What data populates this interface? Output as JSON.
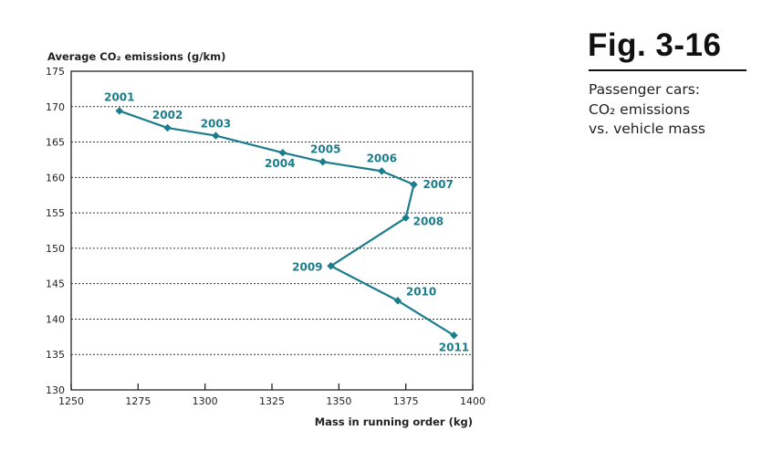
{
  "figure": {
    "number": "Fig. 3-16",
    "subtitle_lines": [
      "Passenger cars:",
      "CO₂ emissions",
      "vs. vehicle mass"
    ]
  },
  "colors": {
    "series": "#1b7c8c",
    "axis": "#222222",
    "grid": "#333333"
  },
  "chart_data": {
    "type": "line",
    "title": "Passenger cars: CO₂ emissions vs. vehicle mass",
    "xlabel": "Mass in running order (kg)",
    "ylabel": "Average CO₂ emissions (g/km)",
    "xlim": [
      1250,
      1400
    ],
    "ylim": [
      130,
      175
    ],
    "xticks": [
      1250,
      1275,
      1300,
      1325,
      1350,
      1375,
      1400
    ],
    "yticks": [
      130,
      135,
      140,
      145,
      150,
      155,
      160,
      165,
      170,
      175
    ],
    "grid": "horizontal dotted",
    "series": [
      {
        "name": "Passenger cars",
        "points": [
          {
            "label": "2001",
            "x": 1268,
            "y": 169.4
          },
          {
            "label": "2002",
            "x": 1286,
            "y": 167.0
          },
          {
            "label": "2003",
            "x": 1304,
            "y": 165.9
          },
          {
            "label": "2004",
            "x": 1329,
            "y": 163.5
          },
          {
            "label": "2005",
            "x": 1344,
            "y": 162.2
          },
          {
            "label": "2006",
            "x": 1366,
            "y": 160.9
          },
          {
            "label": "2007",
            "x": 1378,
            "y": 159.0
          },
          {
            "label": "2008",
            "x": 1375,
            "y": 154.3
          },
          {
            "label": "2009",
            "x": 1347,
            "y": 147.5
          },
          {
            "label": "2010",
            "x": 1372,
            "y": 142.6
          },
          {
            "label": "2011",
            "x": 1393,
            "y": 137.7
          }
        ]
      }
    ]
  }
}
